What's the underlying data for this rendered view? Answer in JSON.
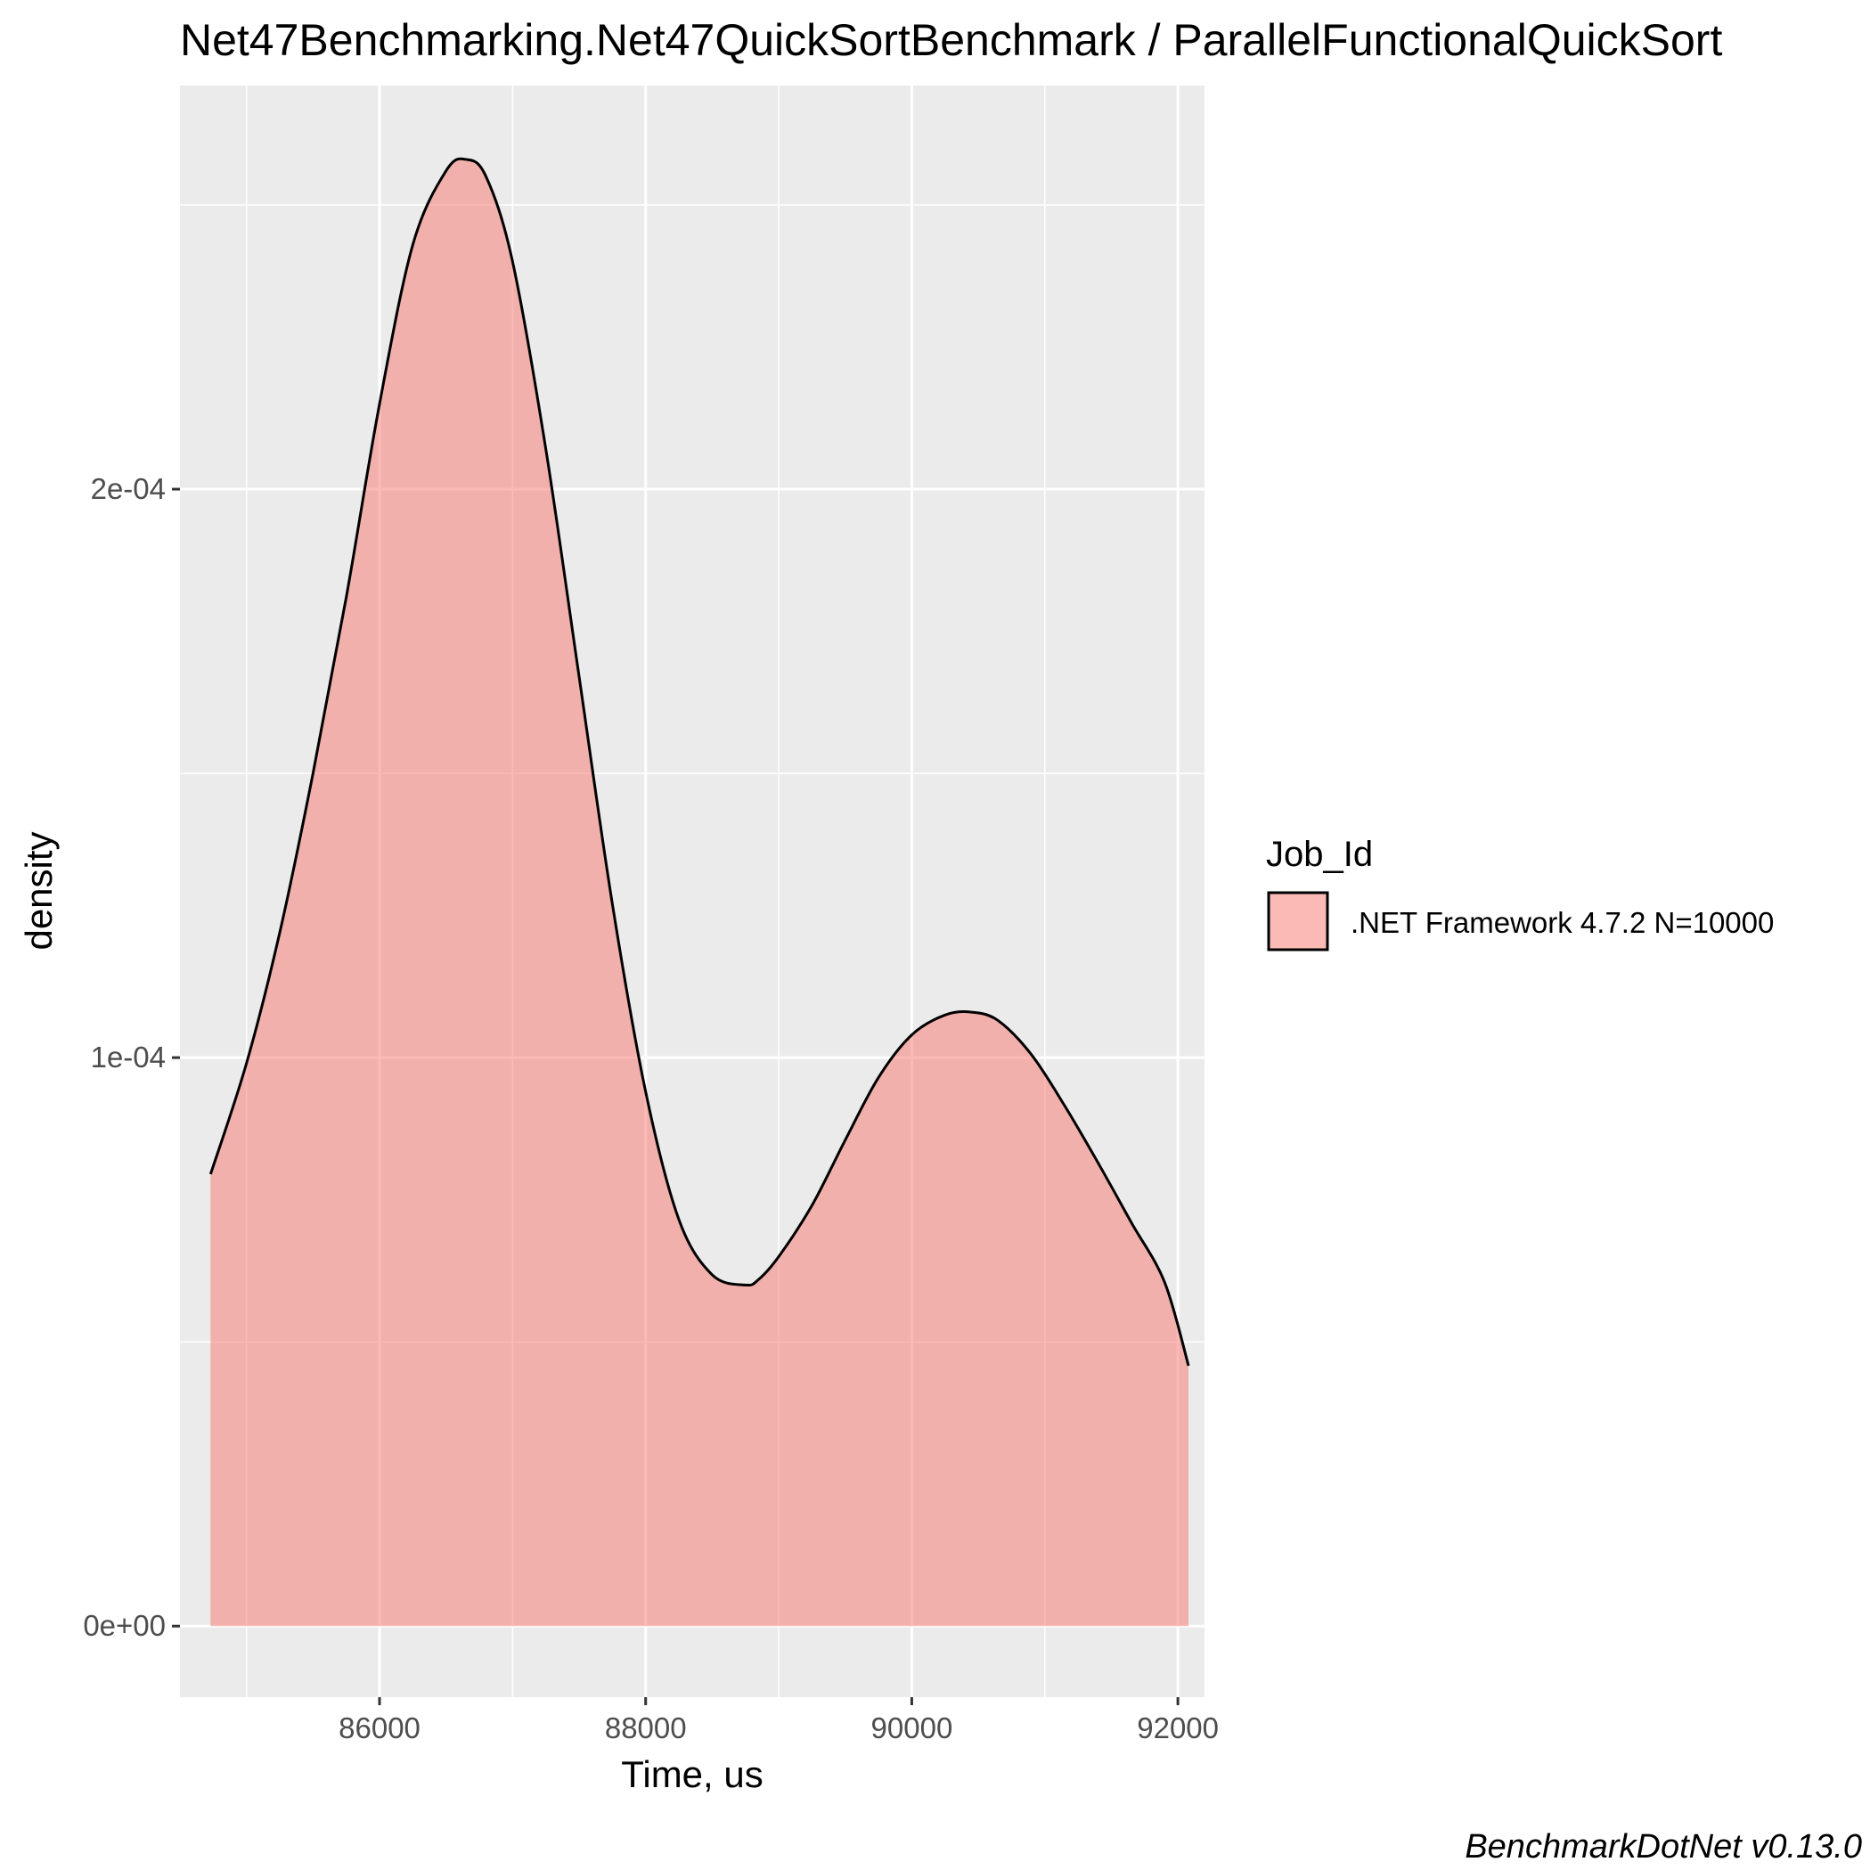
{
  "chart_data": {
    "type": "area",
    "title": "Net47Benchmarking.Net47QuickSortBenchmark / ParallelFunctionalQuickSort",
    "xlabel": "Time, us",
    "ylabel": "density",
    "xlim": [
      84500,
      92200
    ],
    "ylim": [
      -1.25e-05,
      0.000271
    ],
    "x_ticks": [
      86000,
      88000,
      90000,
      92000
    ],
    "x_tick_labels": [
      "86000",
      "88000",
      "90000",
      "92000"
    ],
    "y_ticks": [
      0,
      0.0001,
      0.0002
    ],
    "y_tick_labels": [
      "0e+00",
      "1e-04",
      "2e-04"
    ],
    "grid": true,
    "legend": {
      "title": "Job_Id",
      "position": "right",
      "entries": [
        ".NET Framework 4.7.2 N=10000"
      ]
    },
    "series": [
      {
        "name": ".NET Framework 4.7.2 N=10000",
        "color": "#F8766D",
        "x": [
          84730,
          85000,
          85250,
          85500,
          85750,
          86000,
          86250,
          86500,
          86650,
          86800,
          87000,
          87250,
          87500,
          87750,
          88000,
          88250,
          88500,
          88750,
          88850,
          89000,
          89250,
          89500,
          89750,
          90000,
          90250,
          90450,
          90650,
          90900,
          91150,
          91400,
          91650,
          91900,
          92080
        ],
        "y": [
          7.95e-05,
          9.9e-05,
          0.000122,
          0.00015,
          0.000181,
          0.000215,
          0.000243,
          0.000256,
          0.000258,
          0.000255,
          0.00024,
          0.000207,
          0.000167,
          0.000127,
          9.4e-05,
          7.15e-05,
          6.18e-05,
          6e-05,
          6.1e-05,
          6.5e-05,
          7.4e-05,
          8.55e-05,
          9.65e-05,
          0.000104,
          0.0001075,
          0.000108,
          0.0001065,
          0.0001005,
          9.15e-05,
          8.15e-05,
          7.1e-05,
          6.05e-05,
          4.58e-05
        ]
      }
    ],
    "caption": "BenchmarkDotNet v0.13.0"
  }
}
